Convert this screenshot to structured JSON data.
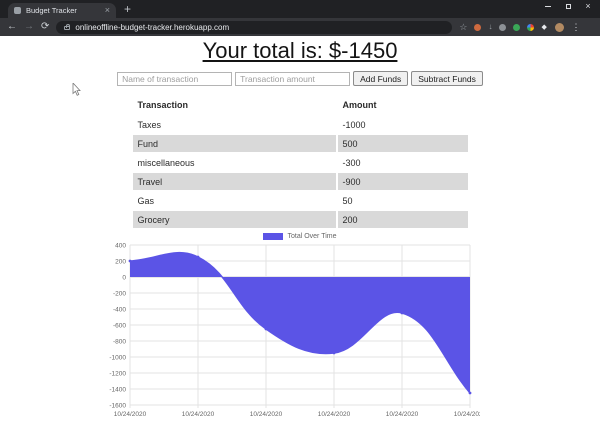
{
  "browser": {
    "tab_title": "Budget Tracker",
    "tab_close_icon": "×",
    "new_tab_icon": "+",
    "window_close_icon": "×",
    "nav": {
      "back_icon": "←",
      "forward_icon": "→",
      "refresh_icon": "⟳"
    },
    "url": "onlineoffline-budget-tracker.herokuapp.com",
    "star_icon": "☆",
    "download_icon": "↓",
    "extensions_pin_icon": "◆",
    "menu_icon": "⋮"
  },
  "page": {
    "title": "Your total is: $-1450",
    "form": {
      "name_placeholder": "Name of transaction",
      "amount_placeholder": "Transaction amount",
      "add_button": "Add Funds",
      "subtract_button": "Subtract Funds"
    },
    "table": {
      "headers": [
        "Transaction",
        "Amount"
      ],
      "rows": [
        [
          "Taxes",
          "-1000"
        ],
        [
          "Fund",
          "500"
        ],
        [
          "miscellaneous",
          "-300"
        ],
        [
          "Travel",
          "-900"
        ],
        [
          "Gas",
          "50"
        ],
        [
          "Grocery",
          "200"
        ]
      ]
    }
  },
  "chart_data": {
    "type": "area",
    "title": "",
    "legend": "Total Over Time",
    "legend_position": "top",
    "categories": [
      "10/24/2020",
      "10/24/2020",
      "10/24/2020",
      "10/24/2020",
      "10/24/2020",
      "10/24/2020"
    ],
    "values": [
      200,
      250,
      -650,
      -950,
      -450,
      -1450
    ],
    "xlabel": "",
    "ylabel": "",
    "ylim": [
      -1600,
      400
    ],
    "ytick_step": 200,
    "grid": true,
    "fill_color": "#5b54e6",
    "line_color": "#5b54e6",
    "grid_color": "#e3e3e3",
    "zero_line_color": "#cfcfcf",
    "tick_color": "#666666",
    "smoothing_tension": 0.4
  }
}
